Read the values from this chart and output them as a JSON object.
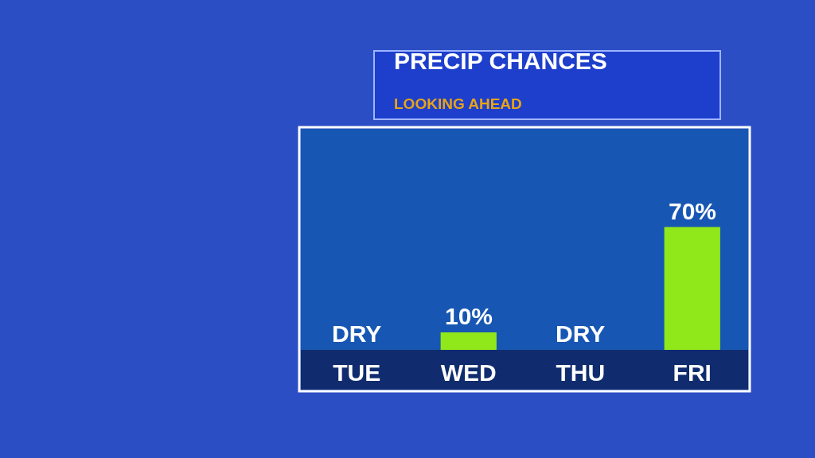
{
  "chart_data": {
    "type": "bar",
    "title": "PRECIP CHANCES",
    "subtitle": "LOOKING AHEAD",
    "categories": [
      "TUE",
      "WED",
      "THU",
      "FRI"
    ],
    "values": [
      0,
      10,
      0,
      70
    ],
    "value_labels": [
      "DRY",
      "10%",
      "DRY",
      "70%"
    ],
    "color": "#90e81a"
  }
}
